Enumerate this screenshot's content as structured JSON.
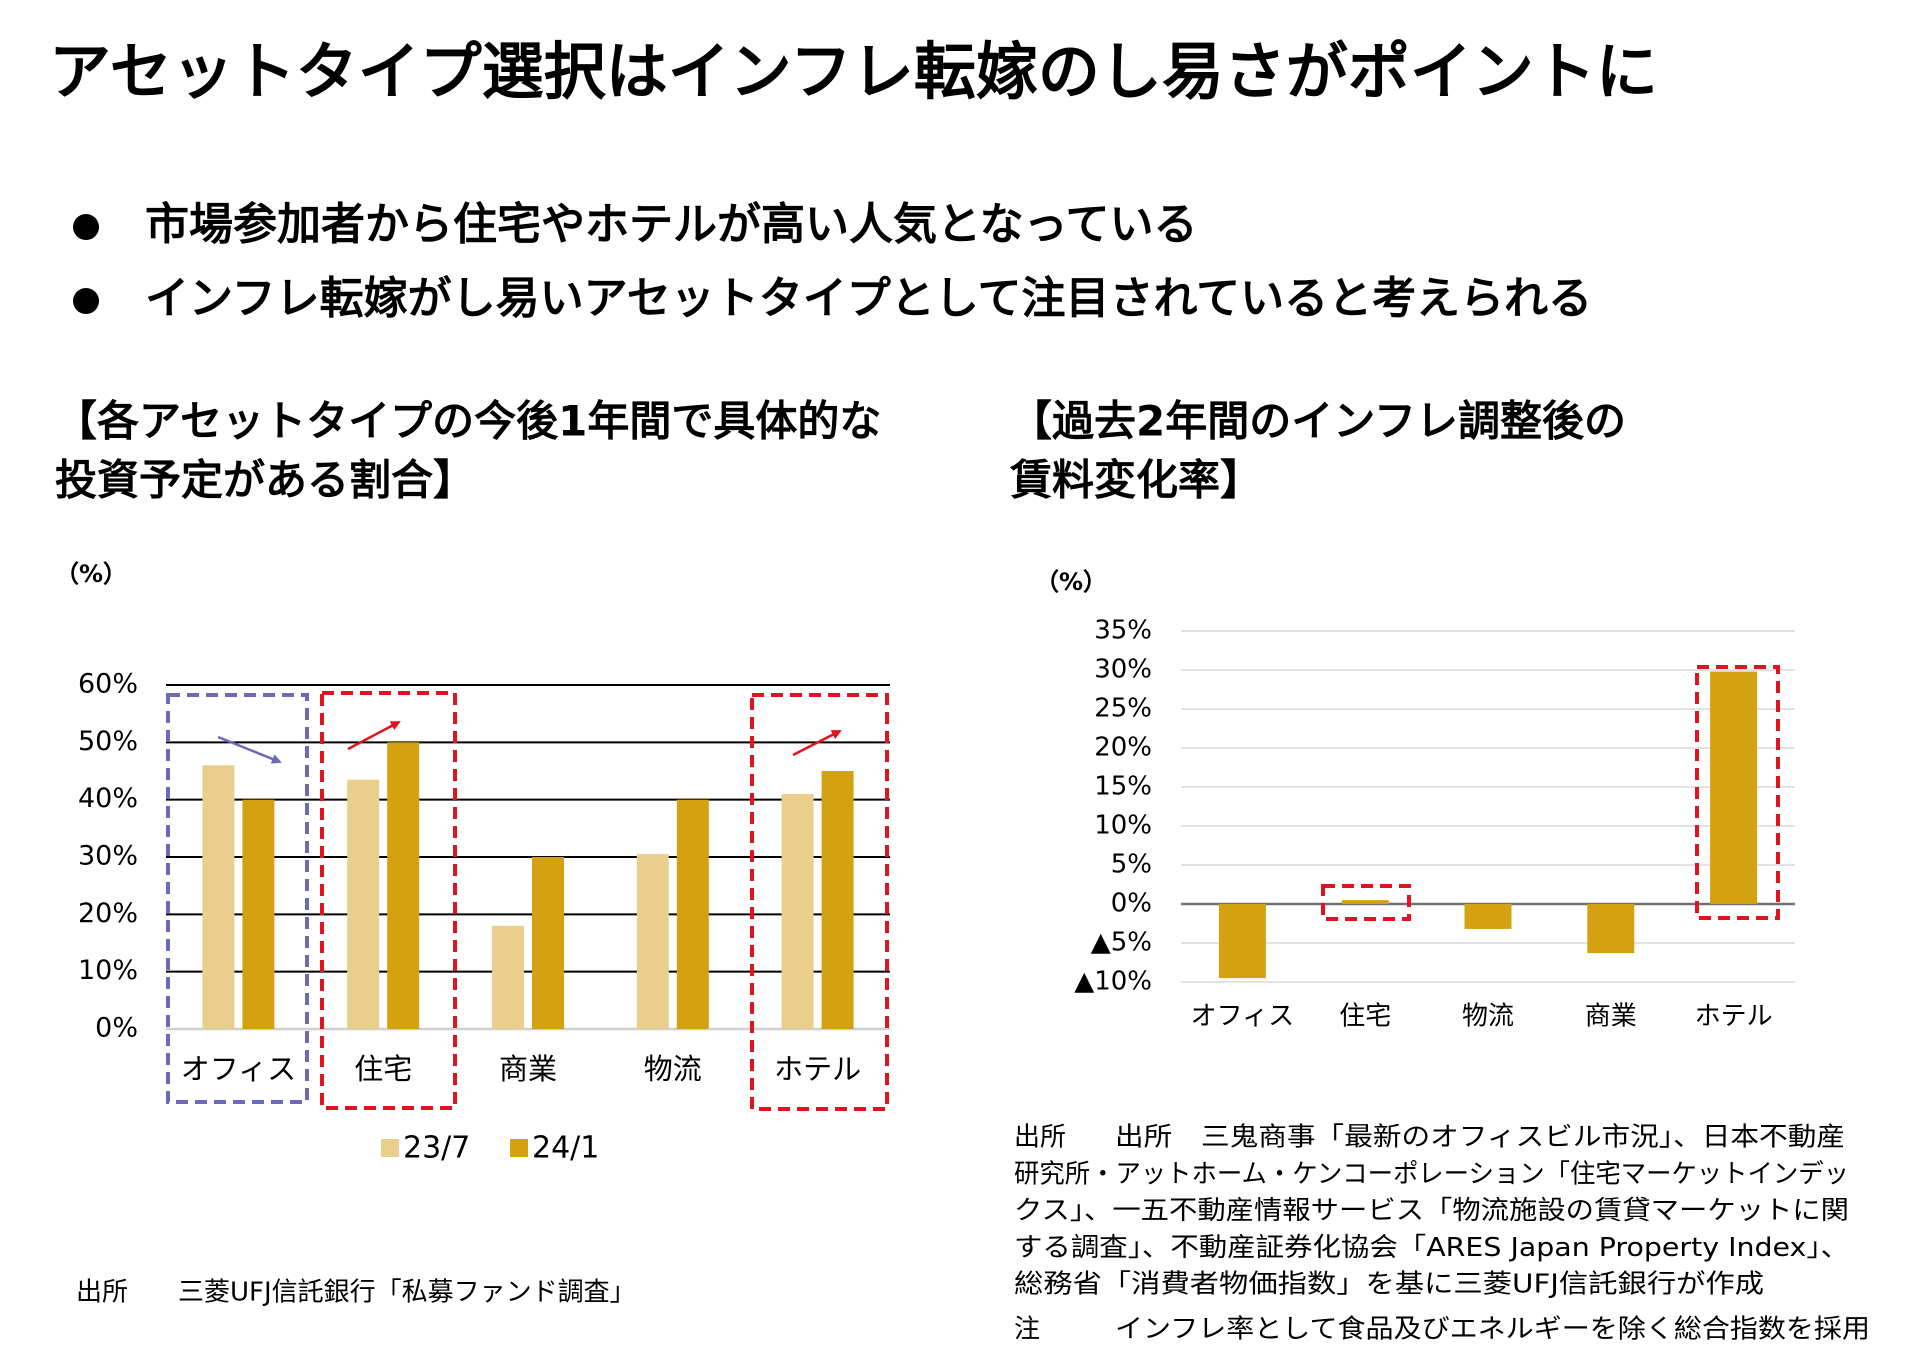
{
  "title": "アセットタイプ選択はインフレ転嫁のし易さがポイントに",
  "bullets": [
    "市場参加者から住宅やホテルが高い人気となっている",
    "インフレ転嫁がし易いアセットタイプとして注目されていると考えられる"
  ],
  "chart_data": [
    {
      "type": "bar",
      "title_lines": [
        "【各アセットタイプの今後1年間で具体的な",
        "投資予定がある割合】"
      ],
      "unit_label": "（%）",
      "categories": [
        "オフィス",
        "住宅",
        "商業",
        "物流",
        "ホテル"
      ],
      "series": [
        {
          "name": "23/7",
          "color": "#e9cf8b",
          "values": [
            46,
            43.5,
            18,
            30.5,
            41
          ]
        },
        {
          "name": "24/1",
          "color": "#d4a110",
          "values": [
            40,
            50,
            30,
            40,
            45
          ]
        }
      ],
      "ylim": [
        0,
        60
      ],
      "yticks": [
        {
          "value": 0,
          "label": "0%"
        },
        {
          "value": 10,
          "label": "10%"
        },
        {
          "value": 20,
          "label": "20%"
        },
        {
          "value": 30,
          "label": "30%"
        },
        {
          "value": 40,
          "label": "40%"
        },
        {
          "value": 50,
          "label": "50%"
        },
        {
          "value": 60,
          "label": "60%"
        }
      ],
      "grid": true,
      "legend": "bottom",
      "source_label": "出所",
      "source": "三菱UFJ信託銀行「私募ファンド調査」"
    },
    {
      "type": "bar",
      "title_lines": [
        "【過去2年間のインフレ調整後の",
        "賃料変化率】"
      ],
      "unit_label": "（%）",
      "categories": [
        "オフィス",
        "住宅",
        "物流",
        "商業",
        "ホテル"
      ],
      "color": "#d4a110",
      "values": [
        -9.5,
        0.5,
        -3.2,
        -6.3,
        29.8
      ],
      "ylim": [
        -10,
        35
      ],
      "yticks": [
        {
          "value": -10,
          "label": "▲10%"
        },
        {
          "value": -5,
          "label": "▲5%"
        },
        {
          "value": 0,
          "label": "0%"
        },
        {
          "value": 5,
          "label": "5%"
        },
        {
          "value": 10,
          "label": "10%"
        },
        {
          "value": 15,
          "label": "15%"
        },
        {
          "value": 20,
          "label": "20%"
        },
        {
          "value": 25,
          "label": "25%"
        },
        {
          "value": 30,
          "label": "30%"
        },
        {
          "value": 35,
          "label": "35%"
        }
      ],
      "grid": true,
      "source_label": "出所",
      "source_lines": [
        "出所　三鬼商事「最新のオフィスビル市況」、日本不動産",
        "研究所・アットホーム・ケンコーポレーション「住宅マーケットインデッ",
        "クス」、一五不動産情報サービス「物流施設の賃貸マーケットに関",
        "する調査」、不動産証券化協会「ARES Japan Property Index」、",
        "総務省「消費者物価指数」を基に三菱UFJ信託銀行が作成"
      ],
      "note_label": "注",
      "note": "インフレ率として食品及びエネルギーを除く総合指数を採用"
    }
  ]
}
